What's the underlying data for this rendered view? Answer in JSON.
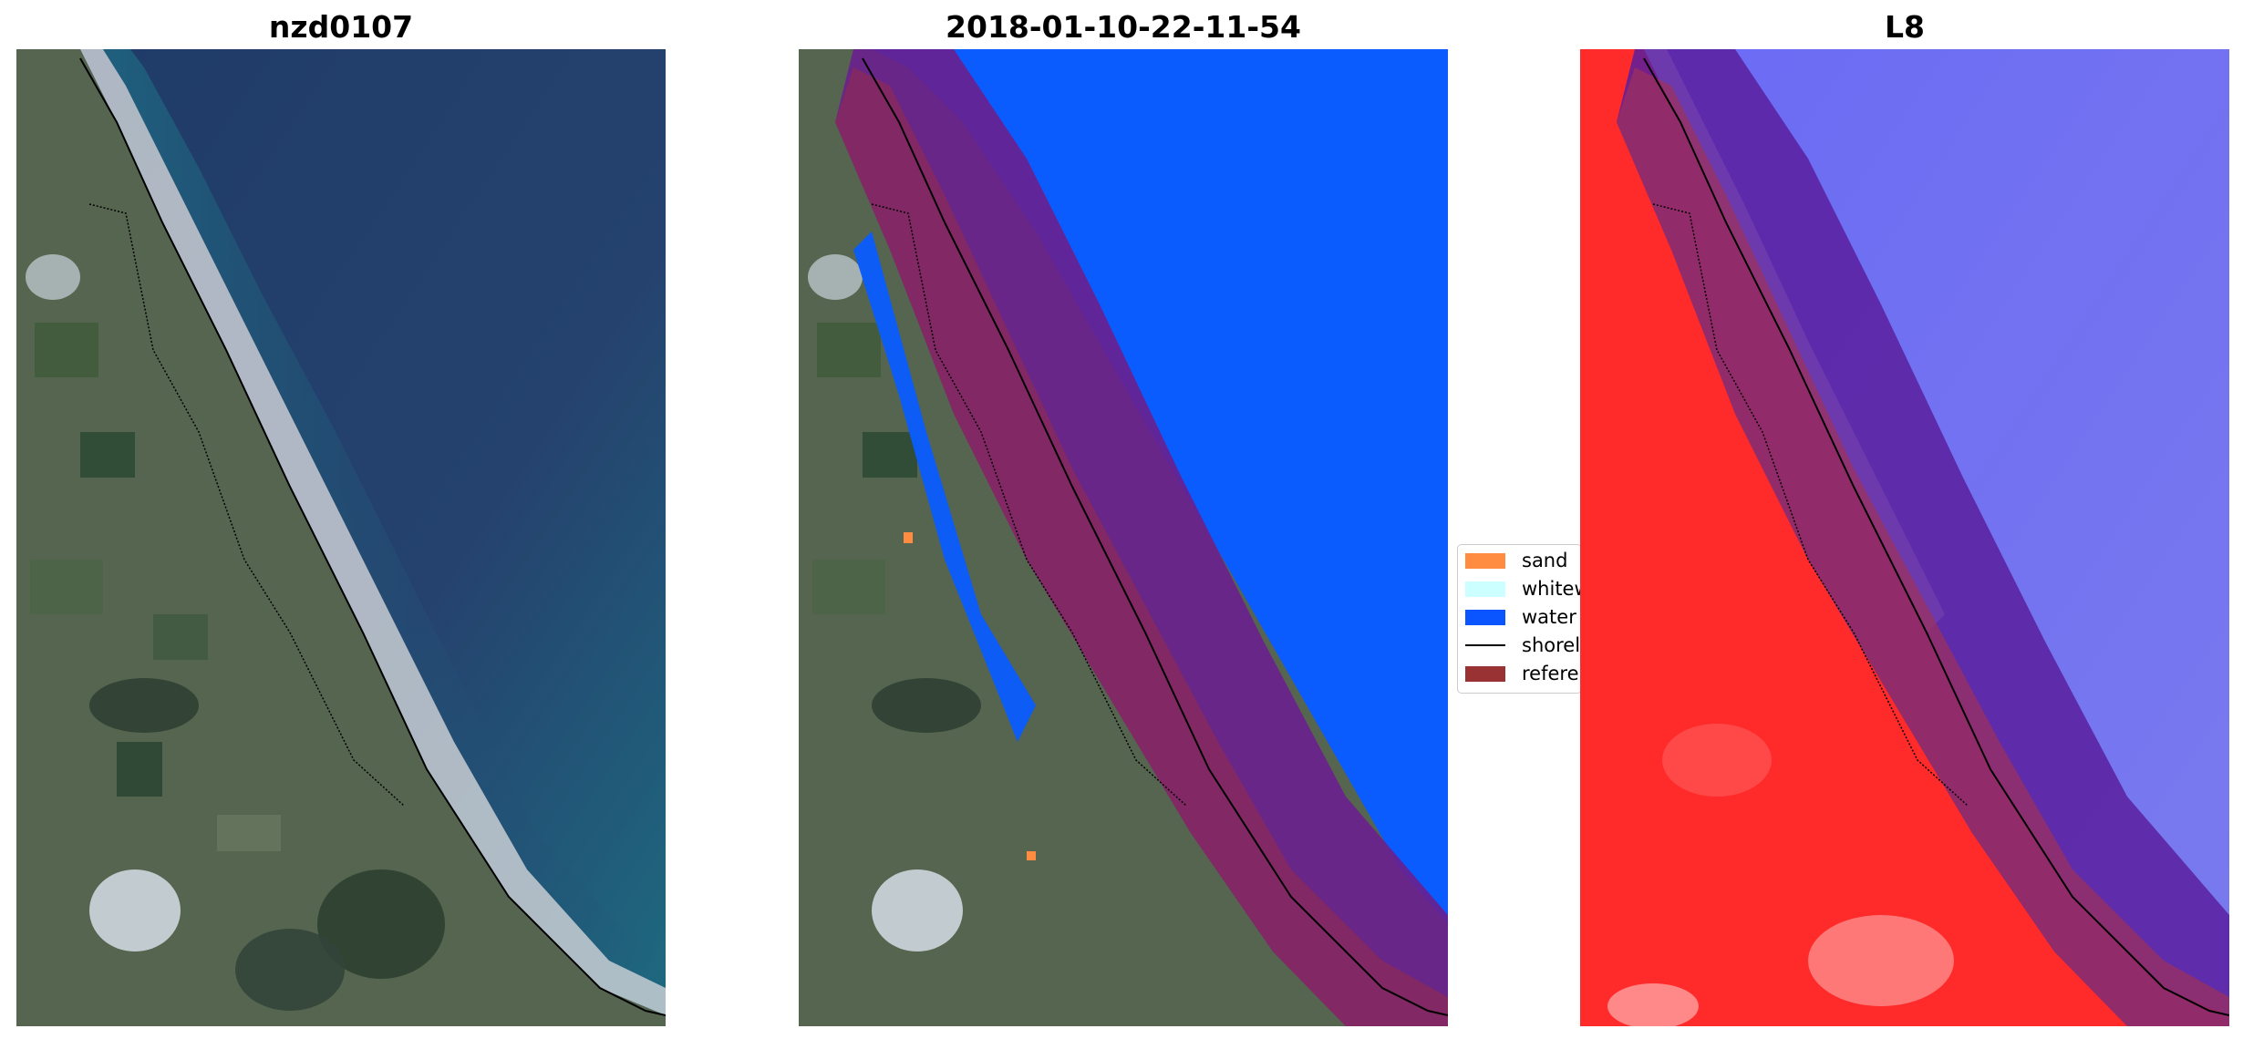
{
  "panels": [
    {
      "title": "nzd0107"
    },
    {
      "title": "2018-01-10-22-11-54"
    },
    {
      "title": "L8"
    }
  ],
  "legend": {
    "items": [
      {
        "label": "sand",
        "color": "#ff8c40",
        "kind": "patch"
      },
      {
        "label": "whitewater",
        "color": "#ccffff",
        "kind": "patch"
      },
      {
        "label": "water",
        "color": "#0a55ff",
        "kind": "patch"
      },
      {
        "label": "shoreline",
        "color": "#000000",
        "kind": "line"
      },
      {
        "label": "reference shoreline buffer",
        "color": "#993333",
        "kind": "patch"
      }
    ]
  },
  "colors": {
    "ocean": "#25406b",
    "land": "#5a6a55",
    "water_class": "#0a5cff",
    "buffer_overlay": "#6a1f8f",
    "index_land": "#ff2b2b",
    "index_water": "#6b6bf0"
  }
}
